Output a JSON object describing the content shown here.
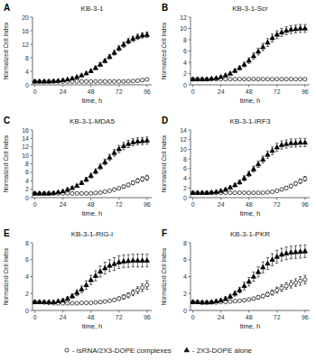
{
  "chart_data": [
    {
      "type": "scatter",
      "panel_label": "A",
      "title": "KB-3-1",
      "x_label": "time, h",
      "y_label": "Normalized Cell Index",
      "xlim": [
        -2,
        100
      ],
      "xticks": [
        0,
        24,
        48,
        72,
        96
      ],
      "ylim": [
        0,
        20
      ],
      "yticks": [
        0,
        4,
        8,
        12,
        16,
        20
      ],
      "legend": "bottom",
      "x": [
        0,
        4,
        8,
        12,
        16,
        20,
        24,
        28,
        32,
        36,
        40,
        44,
        48,
        52,
        56,
        60,
        64,
        68,
        72,
        76,
        80,
        84,
        88,
        92,
        96
      ],
      "series": [
        {
          "name": "- isRNA/2X3-DOPE complexes",
          "marker": "open-circle",
          "color": "black",
          "values": [
            1.0,
            1.0,
            1.0,
            1.0,
            1.0,
            1.0,
            1.0,
            1.0,
            1.0,
            1.0,
            1.0,
            1.0,
            1.0,
            1.0,
            1.0,
            1.0,
            1.0,
            1.0,
            1.0,
            1.0,
            1.05,
            1.1,
            1.2,
            1.4,
            1.6
          ],
          "yerr": [
            0.05,
            0.05,
            0.05,
            0.05,
            0.05,
            0.05,
            0.05,
            0.05,
            0.05,
            0.05,
            0.05,
            0.05,
            0.05,
            0.05,
            0.05,
            0.05,
            0.05,
            0.05,
            0.05,
            0.1,
            0.1,
            0.1,
            0.15,
            0.15,
            0.2
          ]
        },
        {
          "name": "- 2X3-DOPE alone",
          "marker": "filled-triangle",
          "color": "black",
          "values": [
            1.0,
            1.0,
            1.0,
            1.0,
            1.1,
            1.2,
            1.4,
            1.6,
            1.9,
            2.3,
            2.8,
            3.4,
            4.1,
            5.0,
            6.0,
            7.1,
            8.3,
            9.5,
            10.8,
            11.9,
            12.9,
            13.6,
            14.2,
            14.6,
            14.8
          ],
          "yerr": [
            0.05,
            0.05,
            0.05,
            0.05,
            0.1,
            0.1,
            0.1,
            0.15,
            0.2,
            0.25,
            0.3,
            0.4,
            0.45,
            0.5,
            0.55,
            0.6,
            0.65,
            0.7,
            0.75,
            0.8,
            0.8,
            0.8,
            0.8,
            0.8,
            0.8
          ]
        }
      ]
    },
    {
      "type": "scatter",
      "panel_label": "B",
      "title": "KB-3-1-Scr",
      "x_label": "time, h",
      "y_label": "Normalized Cell Index",
      "xlim": [
        -2,
        100
      ],
      "xticks": [
        0,
        24,
        48,
        72,
        96
      ],
      "ylim": [
        0,
        12
      ],
      "yticks": [
        0,
        2,
        4,
        6,
        8,
        10,
        12
      ],
      "x": [
        0,
        4,
        8,
        12,
        16,
        20,
        24,
        28,
        32,
        36,
        40,
        44,
        48,
        52,
        56,
        60,
        64,
        68,
        72,
        76,
        80,
        84,
        88,
        92,
        96
      ],
      "series": [
        {
          "name": "- isRNA/2X3-DOPE complexes",
          "marker": "open-circle",
          "color": "black",
          "values": [
            1.0,
            1.0,
            1.0,
            1.0,
            1.0,
            1.0,
            1.0,
            1.0,
            1.0,
            1.0,
            1.0,
            1.0,
            1.0,
            1.0,
            1.0,
            1.0,
            1.0,
            1.0,
            1.0,
            1.0,
            1.0,
            1.0,
            1.0,
            1.0,
            1.0
          ],
          "yerr": [
            0.05,
            0.05,
            0.05,
            0.05,
            0.05,
            0.05,
            0.05,
            0.05,
            0.05,
            0.05,
            0.05,
            0.05,
            0.05,
            0.05,
            0.05,
            0.05,
            0.05,
            0.05,
            0.05,
            0.05,
            0.05,
            0.05,
            0.05,
            0.05,
            0.05
          ]
        },
        {
          "name": "- 2X3-DOPE alone",
          "marker": "filled-triangle",
          "color": "black",
          "values": [
            1.0,
            1.0,
            1.0,
            1.0,
            1.1,
            1.2,
            1.4,
            1.7,
            2.0,
            2.5,
            3.0,
            3.6,
            4.3,
            5.1,
            5.9,
            6.7,
            7.5,
            8.3,
            8.9,
            9.3,
            9.6,
            9.8,
            9.9,
            10.0,
            10.0
          ],
          "yerr": [
            0.05,
            0.05,
            0.05,
            0.05,
            0.1,
            0.1,
            0.15,
            0.2,
            0.25,
            0.3,
            0.35,
            0.4,
            0.5,
            0.55,
            0.6,
            0.65,
            0.7,
            0.7,
            0.7,
            0.7,
            0.7,
            0.7,
            0.7,
            0.7,
            0.7
          ]
        }
      ]
    },
    {
      "type": "scatter",
      "panel_label": "C",
      "title": "KB-3-1-MDA5",
      "x_label": "time, h",
      "y_label": "Normalized Cell Index",
      "xlim": [
        -2,
        100
      ],
      "xticks": [
        0,
        24,
        48,
        72,
        96
      ],
      "ylim": [
        0,
        16
      ],
      "yticks": [
        0,
        2,
        4,
        6,
        8,
        10,
        12,
        14,
        16
      ],
      "x": [
        0,
        4,
        8,
        12,
        16,
        20,
        24,
        28,
        32,
        36,
        40,
        44,
        48,
        52,
        56,
        60,
        64,
        68,
        72,
        76,
        80,
        84,
        88,
        92,
        96
      ],
      "series": [
        {
          "name": "- isRNA/2X3-DOPE complexes",
          "marker": "open-circle",
          "color": "black",
          "values": [
            1.0,
            1.0,
            1.0,
            1.0,
            1.0,
            1.0,
            1.0,
            1.0,
            1.0,
            1.0,
            1.0,
            1.0,
            1.0,
            1.1,
            1.2,
            1.4,
            1.6,
            1.9,
            2.2,
            2.6,
            3.0,
            3.5,
            4.0,
            4.4,
            4.7
          ],
          "yerr": [
            0.05,
            0.05,
            0.05,
            0.05,
            0.05,
            0.05,
            0.05,
            0.05,
            0.05,
            0.05,
            0.05,
            0.05,
            0.1,
            0.1,
            0.15,
            0.2,
            0.2,
            0.25,
            0.3,
            0.35,
            0.4,
            0.45,
            0.5,
            0.55,
            0.6
          ]
        },
        {
          "name": "- 2X3-DOPE alone",
          "marker": "filled-triangle",
          "color": "black",
          "values": [
            1.0,
            1.0,
            1.0,
            1.0,
            1.1,
            1.3,
            1.5,
            1.9,
            2.3,
            2.8,
            3.5,
            4.3,
            5.2,
            6.2,
            7.3,
            8.4,
            9.5,
            10.6,
            11.5,
            12.2,
            12.7,
            13.1,
            13.3,
            13.4,
            13.5
          ],
          "yerr": [
            0.05,
            0.05,
            0.05,
            0.05,
            0.1,
            0.15,
            0.2,
            0.25,
            0.3,
            0.35,
            0.4,
            0.5,
            0.55,
            0.6,
            0.65,
            0.7,
            0.75,
            0.8,
            0.85,
            0.85,
            0.85,
            0.85,
            0.85,
            0.85,
            0.85
          ]
        }
      ]
    },
    {
      "type": "scatter",
      "panel_label": "D",
      "title": "KB-3-1-IRF3",
      "x_label": "time, h",
      "y_label": "Normalized Cell Index",
      "xlim": [
        -2,
        100
      ],
      "xticks": [
        0,
        24,
        48,
        72,
        96
      ],
      "ylim": [
        0,
        14
      ],
      "yticks": [
        0,
        2,
        4,
        6,
        8,
        10,
        12,
        14
      ],
      "x": [
        0,
        4,
        8,
        12,
        16,
        20,
        24,
        28,
        32,
        36,
        40,
        44,
        48,
        52,
        56,
        60,
        64,
        68,
        72,
        76,
        80,
        84,
        88,
        92,
        96
      ],
      "series": [
        {
          "name": "- isRNA/2X3-DOPE complexes",
          "marker": "open-circle",
          "color": "black",
          "values": [
            1.0,
            1.0,
            1.0,
            1.0,
            1.0,
            1.0,
            1.0,
            1.0,
            1.0,
            1.0,
            1.0,
            1.0,
            1.0,
            1.0,
            1.0,
            1.0,
            1.1,
            1.2,
            1.4,
            1.7,
            2.0,
            2.4,
            2.9,
            3.4,
            3.9
          ],
          "yerr": [
            0.05,
            0.05,
            0.05,
            0.05,
            0.05,
            0.05,
            0.05,
            0.05,
            0.05,
            0.05,
            0.05,
            0.05,
            0.05,
            0.05,
            0.05,
            0.1,
            0.1,
            0.15,
            0.2,
            0.25,
            0.3,
            0.35,
            0.4,
            0.45,
            0.5
          ]
        },
        {
          "name": "- 2X3-DOPE alone",
          "marker": "filled-triangle",
          "color": "black",
          "values": [
            1.0,
            1.0,
            1.0,
            1.0,
            1.1,
            1.2,
            1.4,
            1.7,
            2.1,
            2.6,
            3.2,
            4.0,
            4.9,
            5.9,
            6.9,
            7.9,
            8.9,
            9.7,
            10.4,
            10.9,
            11.1,
            11.3,
            11.3,
            11.4,
            11.4
          ],
          "yerr": [
            0.05,
            0.05,
            0.05,
            0.05,
            0.1,
            0.15,
            0.2,
            0.25,
            0.3,
            0.35,
            0.4,
            0.5,
            0.55,
            0.6,
            0.65,
            0.7,
            0.75,
            0.8,
            0.85,
            0.85,
            0.85,
            0.85,
            0.85,
            0.85,
            0.85
          ]
        }
      ]
    },
    {
      "type": "scatter",
      "panel_label": "E",
      "title": "KB-3-1-RIG-I",
      "x_label": "time, h",
      "y_label": "Normalized Cell Index",
      "xlim": [
        -2,
        100
      ],
      "xticks": [
        0,
        24,
        48,
        72,
        96
      ],
      "ylim": [
        0,
        8
      ],
      "yticks": [
        0,
        2,
        4,
        6,
        8
      ],
      "x": [
        0,
        4,
        8,
        12,
        16,
        20,
        24,
        28,
        32,
        36,
        40,
        44,
        48,
        52,
        56,
        60,
        64,
        68,
        72,
        76,
        80,
        84,
        88,
        92,
        96
      ],
      "series": [
        {
          "name": "- isRNA/2X3-DOPE complexes",
          "marker": "open-circle",
          "color": "black",
          "values": [
            1.0,
            1.0,
            0.95,
            0.9,
            0.85,
            0.85,
            0.85,
            0.85,
            0.85,
            0.85,
            0.9,
            0.9,
            0.9,
            0.95,
            1.0,
            1.05,
            1.15,
            1.25,
            1.4,
            1.6,
            1.8,
            2.1,
            2.4,
            2.7,
            3.0
          ],
          "yerr": [
            0.05,
            0.05,
            0.05,
            0.05,
            0.05,
            0.05,
            0.05,
            0.05,
            0.05,
            0.05,
            0.05,
            0.05,
            0.05,
            0.05,
            0.05,
            0.1,
            0.1,
            0.15,
            0.2,
            0.25,
            0.3,
            0.35,
            0.4,
            0.45,
            0.5
          ]
        },
        {
          "name": "- 2X3-DOPE alone",
          "marker": "filled-triangle",
          "color": "black",
          "values": [
            1.0,
            1.0,
            1.0,
            1.0,
            1.0,
            1.1,
            1.2,
            1.4,
            1.7,
            2.1,
            2.5,
            3.0,
            3.6,
            4.1,
            4.6,
            5.0,
            5.3,
            5.5,
            5.7,
            5.8,
            5.85,
            5.9,
            5.9,
            5.9,
            5.9
          ],
          "yerr": [
            0.05,
            0.05,
            0.05,
            0.05,
            0.05,
            0.1,
            0.15,
            0.2,
            0.25,
            0.35,
            0.4,
            0.5,
            0.55,
            0.6,
            0.65,
            0.7,
            0.7,
            0.75,
            0.75,
            0.75,
            0.75,
            0.75,
            0.75,
            0.75,
            0.75
          ]
        }
      ]
    },
    {
      "type": "scatter",
      "panel_label": "F",
      "title": "KB-3-1-PKR",
      "x_label": "time, h",
      "y_label": "Normalized Cell Index",
      "xlim": [
        -2,
        100
      ],
      "xticks": [
        0,
        24,
        48,
        72,
        96
      ],
      "ylim": [
        0,
        8
      ],
      "yticks": [
        0,
        2,
        4,
        6,
        8
      ],
      "x": [
        0,
        4,
        8,
        12,
        16,
        20,
        24,
        28,
        32,
        36,
        40,
        44,
        48,
        52,
        56,
        60,
        64,
        68,
        72,
        76,
        80,
        84,
        88,
        92,
        96
      ],
      "series": [
        {
          "name": "- isRNA/2X3-DOPE complexes",
          "marker": "open-circle",
          "color": "black",
          "values": [
            1.0,
            1.0,
            0.95,
            0.95,
            0.95,
            0.95,
            1.0,
            1.0,
            1.05,
            1.1,
            1.15,
            1.2,
            1.3,
            1.4,
            1.55,
            1.7,
            1.9,
            2.1,
            2.4,
            2.65,
            2.9,
            3.1,
            3.3,
            3.5,
            3.65
          ],
          "yerr": [
            0.05,
            0.05,
            0.05,
            0.05,
            0.05,
            0.05,
            0.05,
            0.05,
            0.05,
            0.05,
            0.1,
            0.1,
            0.1,
            0.15,
            0.2,
            0.2,
            0.25,
            0.3,
            0.35,
            0.4,
            0.4,
            0.45,
            0.45,
            0.5,
            0.5
          ]
        },
        {
          "name": "- 2X3-DOPE alone",
          "marker": "filled-triangle",
          "color": "black",
          "values": [
            1.0,
            1.0,
            0.95,
            0.95,
            1.0,
            1.1,
            1.2,
            1.4,
            1.65,
            2.0,
            2.4,
            2.9,
            3.4,
            4.0,
            4.55,
            5.1,
            5.55,
            6.0,
            6.35,
            6.6,
            6.75,
            6.85,
            6.9,
            6.95,
            7.0
          ],
          "yerr": [
            0.05,
            0.05,
            0.05,
            0.05,
            0.05,
            0.1,
            0.15,
            0.2,
            0.25,
            0.3,
            0.35,
            0.45,
            0.5,
            0.55,
            0.6,
            0.65,
            0.7,
            0.7,
            0.75,
            0.75,
            0.75,
            0.75,
            0.75,
            0.75,
            0.75
          ]
        }
      ]
    }
  ]
}
